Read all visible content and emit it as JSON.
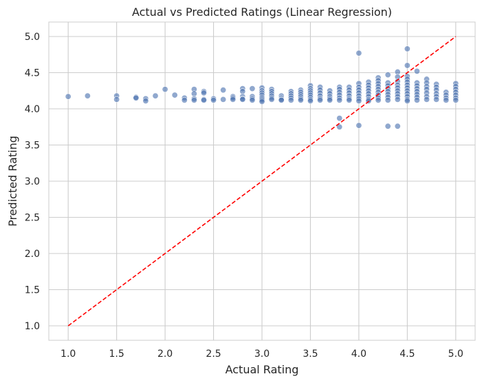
{
  "chart_data": {
    "type": "scatter",
    "title": "Actual vs Predicted Ratings (Linear Regression)",
    "xlabel": "Actual Rating",
    "ylabel": "Predicted Rating",
    "xlim": [
      0.8,
      5.2
    ],
    "ylim": [
      0.8,
      5.2
    ],
    "x_ticks": [
      "1.0",
      "1.5",
      "2.0",
      "2.5",
      "3.0",
      "3.5",
      "4.0",
      "4.5",
      "5.0"
    ],
    "y_ticks": [
      "1.0",
      "1.5",
      "2.0",
      "2.5",
      "3.0",
      "3.5",
      "4.0",
      "4.5",
      "5.0"
    ],
    "grid": true,
    "point_color": "#4c72b0",
    "reference_line": {
      "x": [
        1.0,
        5.0
      ],
      "y": [
        1.0,
        5.0
      ],
      "color": "#ff0000",
      "style": "dashed"
    },
    "series": [
      {
        "points": [
          [
            1.0,
            4.17
          ],
          [
            1.2,
            4.18
          ],
          [
            1.5,
            4.18
          ],
          [
            1.5,
            4.13
          ],
          [
            1.7,
            4.16
          ],
          [
            1.7,
            4.15
          ],
          [
            1.8,
            4.14
          ],
          [
            1.8,
            4.11
          ],
          [
            1.9,
            4.18
          ],
          [
            2.0,
            4.27
          ],
          [
            2.1,
            4.19
          ],
          [
            2.2,
            4.15
          ],
          [
            2.2,
            4.12
          ],
          [
            2.3,
            4.27
          ],
          [
            2.3,
            4.21
          ],
          [
            2.3,
            4.14
          ],
          [
            2.3,
            4.12
          ],
          [
            2.4,
            4.24
          ],
          [
            2.4,
            4.22
          ],
          [
            2.4,
            4.13
          ],
          [
            2.4,
            4.12
          ],
          [
            2.5,
            4.14
          ],
          [
            2.5,
            4.12
          ],
          [
            2.6,
            4.26
          ],
          [
            2.6,
            4.13
          ],
          [
            2.7,
            4.17
          ],
          [
            2.7,
            4.15
          ],
          [
            2.7,
            4.13
          ],
          [
            2.8,
            4.28
          ],
          [
            2.8,
            4.24
          ],
          [
            2.8,
            4.17
          ],
          [
            2.8,
            4.14
          ],
          [
            2.8,
            4.13
          ],
          [
            2.9,
            4.28
          ],
          [
            2.9,
            4.17
          ],
          [
            2.9,
            4.14
          ],
          [
            2.9,
            4.12
          ],
          [
            3.0,
            4.29
          ],
          [
            3.0,
            4.25
          ],
          [
            3.0,
            4.22
          ],
          [
            3.0,
            4.19
          ],
          [
            3.0,
            4.16
          ],
          [
            3.0,
            4.14
          ],
          [
            3.0,
            4.12
          ],
          [
            3.0,
            4.1
          ],
          [
            3.1,
            4.27
          ],
          [
            3.1,
            4.24
          ],
          [
            3.1,
            4.21
          ],
          [
            3.1,
            4.18
          ],
          [
            3.1,
            4.15
          ],
          [
            3.1,
            4.13
          ],
          [
            3.2,
            4.18
          ],
          [
            3.2,
            4.15
          ],
          [
            3.2,
            4.13
          ],
          [
            3.2,
            4.12
          ],
          [
            3.3,
            4.24
          ],
          [
            3.3,
            4.21
          ],
          [
            3.3,
            4.18
          ],
          [
            3.3,
            4.15
          ],
          [
            3.3,
            4.12
          ],
          [
            3.4,
            4.26
          ],
          [
            3.4,
            4.23
          ],
          [
            3.4,
            4.2
          ],
          [
            3.4,
            4.17
          ],
          [
            3.4,
            4.14
          ],
          [
            3.4,
            4.12
          ],
          [
            3.5,
            4.32
          ],
          [
            3.5,
            4.28
          ],
          [
            3.5,
            4.25
          ],
          [
            3.5,
            4.22
          ],
          [
            3.5,
            4.19
          ],
          [
            3.5,
            4.16
          ],
          [
            3.5,
            4.13
          ],
          [
            3.5,
            4.11
          ],
          [
            3.6,
            4.3
          ],
          [
            3.6,
            4.26
          ],
          [
            3.6,
            4.22
          ],
          [
            3.6,
            4.18
          ],
          [
            3.6,
            4.14
          ],
          [
            3.6,
            4.12
          ],
          [
            3.7,
            4.25
          ],
          [
            3.7,
            4.21
          ],
          [
            3.7,
            4.17
          ],
          [
            3.7,
            4.14
          ],
          [
            3.7,
            4.12
          ],
          [
            3.8,
            4.3
          ],
          [
            3.8,
            4.27
          ],
          [
            3.8,
            4.23
          ],
          [
            3.8,
            4.19
          ],
          [
            3.8,
            4.15
          ],
          [
            3.8,
            4.12
          ],
          [
            3.8,
            3.87
          ],
          [
            3.8,
            3.75
          ],
          [
            3.9,
            4.3
          ],
          [
            3.9,
            4.26
          ],
          [
            3.9,
            4.22
          ],
          [
            3.9,
            4.18
          ],
          [
            3.9,
            4.14
          ],
          [
            3.9,
            4.12
          ],
          [
            4.0,
            4.77
          ],
          [
            4.0,
            4.35
          ],
          [
            4.0,
            4.3
          ],
          [
            4.0,
            4.26
          ],
          [
            4.0,
            4.22
          ],
          [
            4.0,
            4.18
          ],
          [
            4.0,
            4.14
          ],
          [
            4.0,
            4.11
          ],
          [
            4.0,
            3.77
          ],
          [
            4.1,
            4.37
          ],
          [
            4.1,
            4.33
          ],
          [
            4.1,
            4.29
          ],
          [
            4.1,
            4.25
          ],
          [
            4.1,
            4.21
          ],
          [
            4.1,
            4.17
          ],
          [
            4.1,
            4.13
          ],
          [
            4.1,
            4.11
          ],
          [
            4.2,
            4.43
          ],
          [
            4.2,
            4.39
          ],
          [
            4.2,
            4.35
          ],
          [
            4.2,
            4.31
          ],
          [
            4.2,
            4.27
          ],
          [
            4.2,
            4.23
          ],
          [
            4.2,
            4.19
          ],
          [
            4.2,
            4.15
          ],
          [
            4.2,
            4.12
          ],
          [
            4.3,
            4.47
          ],
          [
            4.3,
            4.36
          ],
          [
            4.3,
            4.32
          ],
          [
            4.3,
            4.28
          ],
          [
            4.3,
            4.24
          ],
          [
            4.3,
            4.2
          ],
          [
            4.3,
            4.16
          ],
          [
            4.3,
            4.12
          ],
          [
            4.3,
            3.76
          ],
          [
            4.4,
            4.51
          ],
          [
            4.4,
            4.44
          ],
          [
            4.4,
            4.38
          ],
          [
            4.4,
            4.33
          ],
          [
            4.4,
            4.29
          ],
          [
            4.4,
            4.25
          ],
          [
            4.4,
            4.21
          ],
          [
            4.4,
            4.17
          ],
          [
            4.4,
            4.13
          ],
          [
            4.4,
            3.76
          ],
          [
            4.5,
            4.83
          ],
          [
            4.5,
            4.6
          ],
          [
            4.5,
            4.45
          ],
          [
            4.5,
            4.41
          ],
          [
            4.5,
            4.37
          ],
          [
            4.5,
            4.33
          ],
          [
            4.5,
            4.29
          ],
          [
            4.5,
            4.25
          ],
          [
            4.5,
            4.21
          ],
          [
            4.5,
            4.17
          ],
          [
            4.5,
            4.13
          ],
          [
            4.5,
            4.11
          ],
          [
            4.6,
            4.52
          ],
          [
            4.6,
            4.36
          ],
          [
            4.6,
            4.32
          ],
          [
            4.6,
            4.28
          ],
          [
            4.6,
            4.24
          ],
          [
            4.6,
            4.2
          ],
          [
            4.6,
            4.16
          ],
          [
            4.6,
            4.12
          ],
          [
            4.7,
            4.41
          ],
          [
            4.7,
            4.36
          ],
          [
            4.7,
            4.31
          ],
          [
            4.7,
            4.27
          ],
          [
            4.7,
            4.22
          ],
          [
            4.7,
            4.17
          ],
          [
            4.7,
            4.13
          ],
          [
            4.8,
            4.34
          ],
          [
            4.8,
            4.3
          ],
          [
            4.8,
            4.26
          ],
          [
            4.8,
            4.21
          ],
          [
            4.8,
            4.17
          ],
          [
            4.8,
            4.13
          ],
          [
            4.9,
            4.23
          ],
          [
            4.9,
            4.19
          ],
          [
            4.9,
            4.15
          ],
          [
            4.9,
            4.12
          ],
          [
            5.0,
            4.35
          ],
          [
            5.0,
            4.31
          ],
          [
            5.0,
            4.27
          ],
          [
            5.0,
            4.23
          ],
          [
            5.0,
            4.19
          ],
          [
            5.0,
            4.15
          ],
          [
            5.0,
            4.12
          ]
        ]
      }
    ]
  }
}
